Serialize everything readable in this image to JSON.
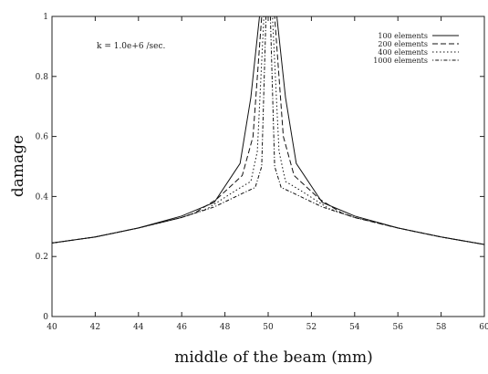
{
  "chart_data": {
    "type": "line",
    "title": "",
    "xlabel": "middle of the beam (mm)",
    "ylabel": "damage",
    "annotation": "k = 1.0e+6 /sec.",
    "xlim": [
      40,
      60
    ],
    "ylim": [
      0,
      1
    ],
    "xticks": [
      "40",
      "42",
      "44",
      "46",
      "48",
      "50",
      "52",
      "54",
      "56",
      "58",
      "60"
    ],
    "yticks": [
      "0",
      "0.2",
      "0.4",
      "0.6",
      "0.8",
      "1"
    ],
    "grid": false,
    "legend_position": "top-right",
    "series": [
      {
        "name": "100 elements",
        "dash": "solid",
        "x": [
          40,
          42,
          44,
          46,
          47.5,
          48.7,
          49.2,
          49.6,
          50.4,
          50.8,
          51.3,
          52.5,
          54,
          56,
          58,
          60
        ],
        "y": [
          0.245,
          0.265,
          0.295,
          0.335,
          0.38,
          0.51,
          0.73,
          1.0,
          1.0,
          0.73,
          0.51,
          0.38,
          0.335,
          0.295,
          0.265,
          0.24
        ]
      },
      {
        "name": "200 elements",
        "dash": "dashed",
        "x": [
          40,
          42,
          44,
          46,
          46.6,
          47.6,
          48.8,
          49.3,
          49.7,
          50.3,
          50.7,
          51.2,
          52.4,
          53.4,
          54,
          56,
          58,
          60
        ],
        "y": [
          0.245,
          0.265,
          0.295,
          0.33,
          0.345,
          0.39,
          0.47,
          0.6,
          1.0,
          1.0,
          0.6,
          0.47,
          0.39,
          0.345,
          0.33,
          0.295,
          0.265,
          0.24
        ]
      },
      {
        "name": "400 elements",
        "dash": "dotted",
        "x": [
          40,
          42,
          44,
          46,
          47.2,
          48.5,
          49.2,
          49.5,
          49.8,
          50.2,
          50.5,
          50.8,
          51.5,
          52.8,
          54,
          56,
          58,
          60
        ],
        "y": [
          0.245,
          0.265,
          0.295,
          0.33,
          0.36,
          0.42,
          0.45,
          0.55,
          1.0,
          1.0,
          0.55,
          0.45,
          0.42,
          0.36,
          0.33,
          0.295,
          0.265,
          0.24
        ]
      },
      {
        "name": "1000 elements",
        "dash": "dashdot",
        "x": [
          40,
          42,
          44,
          46,
          47.5,
          48.8,
          49.4,
          49.7,
          49.9,
          50.1,
          50.3,
          50.6,
          51.2,
          52.5,
          54,
          56,
          58,
          60
        ],
        "y": [
          0.245,
          0.265,
          0.295,
          0.33,
          0.365,
          0.41,
          0.43,
          0.5,
          1.0,
          1.0,
          0.5,
          0.43,
          0.41,
          0.365,
          0.33,
          0.295,
          0.265,
          0.24
        ]
      }
    ]
  }
}
